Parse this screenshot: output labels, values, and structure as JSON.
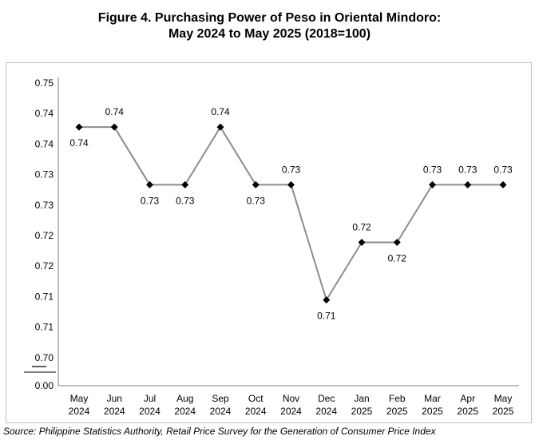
{
  "title_line1": "Figure 4. Purchasing Power of Peso in Oriental Mindoro:",
  "title_line2": "May 2024 to May 2025 (2018=100)",
  "source": "Source: Philippine Statistics Authority, Retail Price Survey for the Generation of Consumer Price Index",
  "chart_data": {
    "type": "line",
    "title": "Figure 4. Purchasing Power of Peso in Oriental Mindoro: May 2024 to May 2025 (2018=100)",
    "categories": [
      "May 2024",
      "Jun 2024",
      "Jul 2024",
      "Aug 2024",
      "Sep 2024",
      "Oct 2024",
      "Nov 2024",
      "Dec 2024",
      "Jan 2025",
      "Feb 2025",
      "Mar 2025",
      "Apr 2025",
      "May 2025"
    ],
    "category_lines": [
      [
        "May",
        "2024"
      ],
      [
        "Jun",
        "2024"
      ],
      [
        "Jul",
        "2024"
      ],
      [
        "Aug",
        "2024"
      ],
      [
        "Sep",
        "2024"
      ],
      [
        "Oct",
        "2024"
      ],
      [
        "Nov",
        "2024"
      ],
      [
        "Dec",
        "2024"
      ],
      [
        "Jan",
        "2025"
      ],
      [
        "Feb",
        "2025"
      ],
      [
        "Mar",
        "2025"
      ],
      [
        "Apr",
        "2025"
      ],
      [
        "May",
        "2025"
      ]
    ],
    "values": [
      0.74,
      0.74,
      0.73,
      0.73,
      0.74,
      0.73,
      0.73,
      0.71,
      0.72,
      0.72,
      0.73,
      0.73,
      0.73
    ],
    "plot_values": [
      0.74,
      0.74,
      0.73,
      0.73,
      0.74,
      0.73,
      0.73,
      0.71,
      0.72,
      0.72,
      0.73,
      0.73,
      0.73
    ],
    "data_labels": [
      "0.74",
      "0.74",
      "0.73",
      "0.73",
      "0.74",
      "0.73",
      "0.73",
      "0.71",
      "0.72",
      "0.72",
      "0.73",
      "0.73",
      "0.73"
    ],
    "label_positions": [
      "below",
      "above",
      "below",
      "below",
      "above",
      "below",
      "above",
      "below",
      "above",
      "below",
      "above",
      "above",
      "above"
    ],
    "y_tick_labels": [
      "0.00",
      "0.70",
      "0.71",
      "0.71",
      "0.72",
      "0.72",
      "0.73",
      "0.73",
      "0.74",
      "0.74",
      "0.75"
    ],
    "y_axis_break": true,
    "ylim": [
      0.7,
      0.745
    ],
    "xlabel": "",
    "ylabel": "",
    "grid": false,
    "legend": "none",
    "line_color": "#8c8c8c",
    "marker_color": "#000000",
    "marker": "diamond"
  }
}
